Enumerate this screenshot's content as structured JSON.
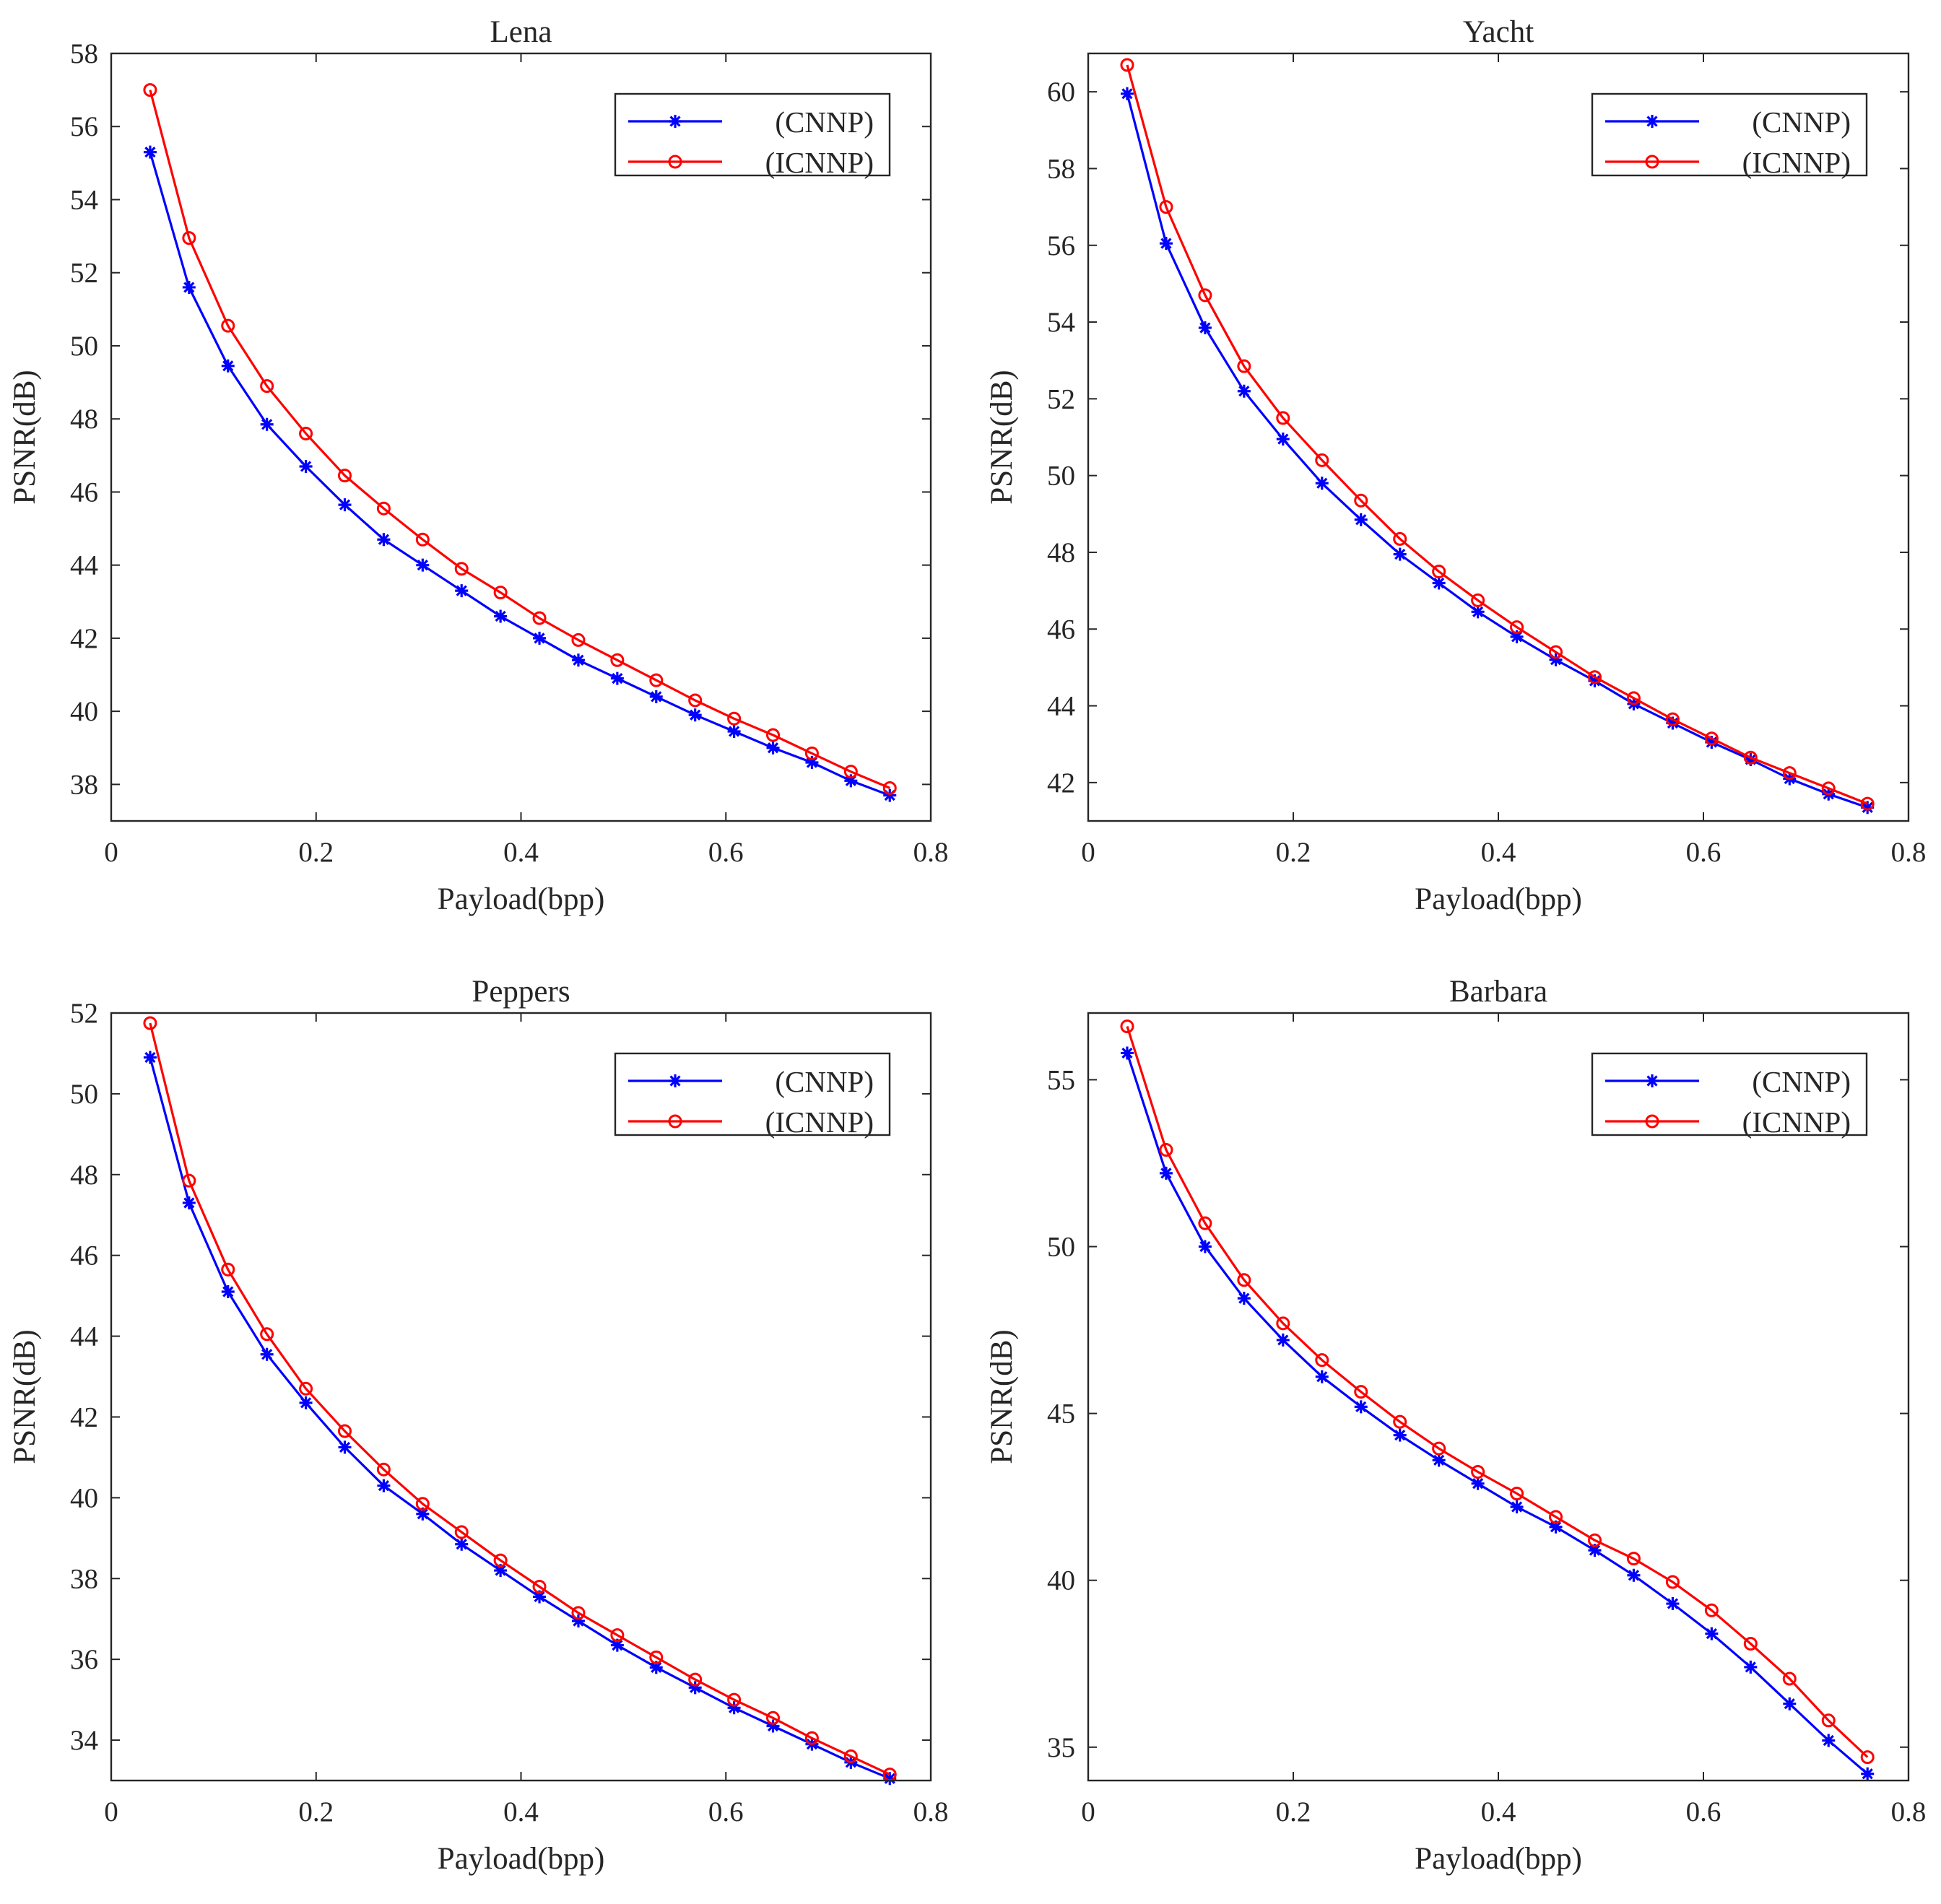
{
  "colors": {
    "cnnp": "#0000ff",
    "icnnp": "#ff0000",
    "axis": "#262626",
    "background": "#ffffff"
  },
  "chart_data": [
    {
      "type": "line",
      "title": "Lena",
      "xlabel": "Payload(bpp)",
      "ylabel": "PSNR(dB)",
      "xlim": [
        0,
        0.8
      ],
      "ylim": [
        37,
        58
      ],
      "xticks": [
        0,
        0.2,
        0.4,
        0.6,
        0.8
      ],
      "xtick_labels": [
        "0",
        "0.2",
        "0.4",
        "0.6",
        "0.8"
      ],
      "yticks": [
        38,
        40,
        42,
        44,
        46,
        48,
        50,
        52,
        54,
        56,
        58
      ],
      "ytick_labels": [
        "38",
        "40",
        "42",
        "44",
        "46",
        "48",
        "50",
        "52",
        "54",
        "56",
        "58"
      ],
      "grid": false,
      "legend_position": "top-right",
      "x": [
        0.038,
        0.076,
        0.114,
        0.152,
        0.19,
        0.228,
        0.266,
        0.304,
        0.342,
        0.38,
        0.418,
        0.456,
        0.494,
        0.532,
        0.57,
        0.608,
        0.646,
        0.684,
        0.722,
        0.76
      ],
      "series": [
        {
          "name": "(CNNP)",
          "marker": "asterisk",
          "values": [
            55.3,
            51.6,
            49.45,
            47.85,
            46.7,
            45.65,
            44.7,
            44.0,
            43.3,
            42.6,
            42.0,
            41.4,
            40.9,
            40.4,
            39.9,
            39.45,
            39.0,
            38.6,
            38.1,
            37.7
          ]
        },
        {
          "name": "(ICNNP)",
          "marker": "circle",
          "values": [
            57.0,
            52.95,
            50.55,
            48.9,
            47.6,
            46.45,
            45.55,
            44.7,
            43.9,
            43.25,
            42.55,
            41.95,
            41.4,
            40.85,
            40.3,
            39.8,
            39.35,
            38.85,
            38.35,
            37.9
          ]
        }
      ]
    },
    {
      "type": "line",
      "title": "Yacht",
      "xlabel": "Payload(bpp)",
      "ylabel": "PSNR(dB)",
      "xlim": [
        0,
        0.8
      ],
      "ylim": [
        41,
        61
      ],
      "xticks": [
        0,
        0.2,
        0.4,
        0.6,
        0.8
      ],
      "xtick_labels": [
        "0",
        "0.2",
        "0.4",
        "0.6",
        "0.8"
      ],
      "yticks": [
        42,
        44,
        46,
        48,
        50,
        52,
        54,
        56,
        58,
        60
      ],
      "ytick_labels": [
        "42",
        "44",
        "46",
        "48",
        "50",
        "52",
        "54",
        "56",
        "58",
        "60"
      ],
      "grid": false,
      "legend_position": "top-right",
      "x": [
        0.038,
        0.076,
        0.114,
        0.152,
        0.19,
        0.228,
        0.266,
        0.304,
        0.342,
        0.38,
        0.418,
        0.456,
        0.494,
        0.532,
        0.57,
        0.608,
        0.646,
        0.684,
        0.722,
        0.76
      ],
      "series": [
        {
          "name": "(CNNP)",
          "marker": "asterisk",
          "values": [
            59.95,
            56.05,
            53.85,
            52.2,
            50.95,
            49.8,
            48.85,
            47.95,
            47.2,
            46.45,
            45.8,
            45.2,
            44.65,
            44.05,
            43.55,
            43.05,
            42.6,
            42.1,
            41.7,
            41.35
          ]
        },
        {
          "name": "(ICNNP)",
          "marker": "circle",
          "values": [
            60.7,
            57.0,
            54.7,
            52.85,
            51.5,
            50.4,
            49.35,
            48.35,
            47.5,
            46.75,
            46.05,
            45.4,
            44.75,
            44.2,
            43.65,
            43.15,
            42.65,
            42.25,
            41.85,
            41.45
          ]
        }
      ]
    },
    {
      "type": "line",
      "title": "Peppers",
      "xlabel": "Payload(bpp)",
      "ylabel": "PSNR(dB)",
      "xlim": [
        0,
        0.8
      ],
      "ylim": [
        33,
        52
      ],
      "xticks": [
        0,
        0.2,
        0.4,
        0.6,
        0.8
      ],
      "xtick_labels": [
        "0",
        "0.2",
        "0.4",
        "0.6",
        "0.8"
      ],
      "yticks": [
        34,
        36,
        38,
        40,
        42,
        44,
        46,
        48,
        50,
        52
      ],
      "ytick_labels": [
        "34",
        "36",
        "38",
        "40",
        "42",
        "44",
        "46",
        "48",
        "50",
        "52"
      ],
      "grid": false,
      "legend_position": "top-right",
      "x": [
        0.038,
        0.076,
        0.114,
        0.152,
        0.19,
        0.228,
        0.266,
        0.304,
        0.342,
        0.38,
        0.418,
        0.456,
        0.494,
        0.532,
        0.57,
        0.608,
        0.646,
        0.684,
        0.722,
        0.76
      ],
      "series": [
        {
          "name": "(CNNP)",
          "marker": "asterisk",
          "values": [
            50.9,
            47.3,
            45.1,
            43.55,
            42.35,
            41.25,
            40.3,
            39.6,
            38.85,
            38.2,
            37.55,
            36.95,
            36.35,
            35.8,
            35.3,
            34.8,
            34.35,
            33.9,
            33.45,
            33.05
          ]
        },
        {
          "name": "(ICNNP)",
          "marker": "circle",
          "values": [
            51.75,
            47.85,
            45.65,
            44.05,
            42.7,
            41.65,
            40.7,
            39.85,
            39.15,
            38.45,
            37.8,
            37.15,
            36.6,
            36.05,
            35.5,
            35.0,
            34.55,
            34.05,
            33.6,
            33.15
          ]
        }
      ]
    },
    {
      "type": "line",
      "title": "Barbara",
      "xlabel": "Payload(bpp)",
      "ylabel": "PSNR(dB)",
      "xlim": [
        0,
        0.8
      ],
      "ylim": [
        34,
        57
      ],
      "xticks": [
        0,
        0.2,
        0.4,
        0.6,
        0.8
      ],
      "xtick_labels": [
        "0",
        "0.2",
        "0.4",
        "0.6",
        "0.8"
      ],
      "yticks": [
        35,
        40,
        45,
        50,
        55
      ],
      "ytick_labels": [
        "35",
        "40",
        "45",
        "50",
        "55"
      ],
      "grid": false,
      "legend_position": "top-right",
      "x": [
        0.038,
        0.076,
        0.114,
        0.152,
        0.19,
        0.228,
        0.266,
        0.304,
        0.342,
        0.38,
        0.418,
        0.456,
        0.494,
        0.532,
        0.57,
        0.608,
        0.646,
        0.684,
        0.722,
        0.76
      ],
      "series": [
        {
          "name": "(CNNP)",
          "marker": "asterisk",
          "values": [
            55.8,
            52.2,
            50.0,
            48.45,
            47.2,
            46.1,
            45.2,
            44.35,
            43.6,
            42.9,
            42.2,
            41.6,
            40.9,
            40.15,
            39.3,
            38.4,
            37.4,
            36.3,
            35.2,
            34.2
          ]
        },
        {
          "name": "(ICNNP)",
          "marker": "circle",
          "values": [
            56.6,
            52.9,
            50.7,
            49.0,
            47.7,
            46.6,
            45.65,
            44.75,
            43.95,
            43.25,
            42.6,
            41.9,
            41.2,
            40.65,
            39.95,
            39.1,
            38.1,
            37.05,
            35.8,
            34.7
          ]
        }
      ]
    }
  ]
}
